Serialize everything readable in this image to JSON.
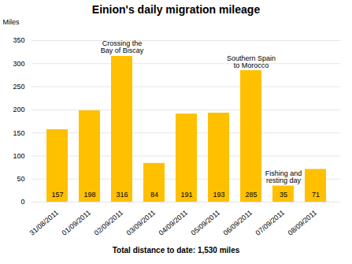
{
  "chart_data": {
    "type": "bar",
    "title": "Einion's daily migration mileage",
    "ylabel": "Miles",
    "categories": [
      "31/08/2011",
      "01/09/2011",
      "02/09/2011",
      "03/09/2011",
      "04/09/2011",
      "05/09/2011",
      "06/09/2011",
      "07/09/2011",
      "08/09/2011"
    ],
    "values": [
      157,
      198,
      316,
      84,
      191,
      193,
      285,
      35,
      71
    ],
    "color": "#FFC000",
    "ylim": [
      0,
      350
    ],
    "yticks": [
      0,
      50,
      100,
      150,
      200,
      250,
      300,
      350
    ],
    "grid": true,
    "data_labels": true,
    "annotations": [
      {
        "text": "Crossing the\nBay of Biscay",
        "category": "02/09/2011"
      },
      {
        "text": "Southern Spain\nto Morocco",
        "category": "06/09/2011"
      },
      {
        "text": "Fishing and\nresting day",
        "category": "07/09/2011"
      },
      {
        "text": "Total distance to date: 1,530 miles"
      }
    ]
  }
}
